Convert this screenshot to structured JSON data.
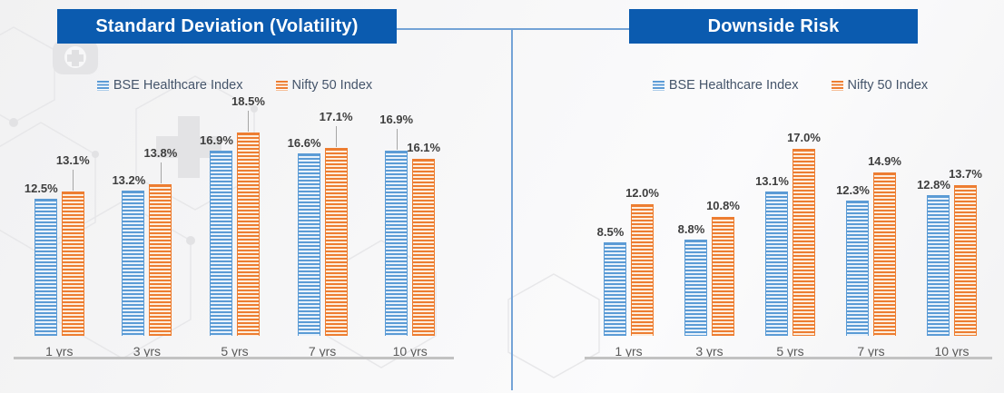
{
  "page": {
    "background_color": "#f4f4f5",
    "divider_color": "#74A3D6",
    "banner_color": "#0B5BAF",
    "baseline_color": "#C2C2C2",
    "leader_line_color": "#A6A6A6",
    "decor_icons": [
      "hexagon-pattern",
      "medical-cross",
      "health-app-badge"
    ]
  },
  "chart_data": [
    {
      "type": "bar",
      "title": "Standard Deviation (Volatility)",
      "categories": [
        "1 yrs",
        "3 yrs",
        "5 yrs",
        "7 yrs",
        "10 yrs"
      ],
      "series": [
        {
          "name": "BSE Healthcare Index",
          "color": "#5B9BD5",
          "stripe_light": "#e9f2fb",
          "values": [
            12.5,
            13.2,
            16.9,
            16.6,
            16.9
          ]
        },
        {
          "name": "Nifty 50 Index",
          "color": "#ED7D31",
          "stripe_light": "#fdeede",
          "values": [
            13.1,
            13.8,
            18.5,
            17.1,
            16.1
          ]
        }
      ],
      "leader_lines": [
        [
          false,
          false,
          false,
          false,
          true
        ],
        [
          true,
          true,
          true,
          true,
          false
        ]
      ],
      "value_label_suffix": "%",
      "value_label_decimals": 1,
      "legend_position": "top",
      "grid": false,
      "y_axis_visible": false,
      "ylim": [
        0,
        20
      ]
    },
    {
      "type": "bar",
      "title": "Downside Risk",
      "categories": [
        "1 yrs",
        "3 yrs",
        "5 yrs",
        "7 yrs",
        "10 yrs"
      ],
      "series": [
        {
          "name": "BSE Healthcare Index",
          "color": "#5B9BD5",
          "stripe_light": "#e9f2fb",
          "values": [
            8.5,
            8.8,
            13.1,
            12.3,
            12.8
          ]
        },
        {
          "name": "Nifty 50 Index",
          "color": "#ED7D31",
          "stripe_light": "#fdeede",
          "values": [
            12.0,
            10.8,
            17.0,
            14.9,
            13.7
          ]
        }
      ],
      "leader_lines": [
        [
          false,
          false,
          false,
          false,
          false
        ],
        [
          false,
          false,
          false,
          false,
          false
        ]
      ],
      "value_label_suffix": "%",
      "value_label_decimals": 1,
      "legend_position": "top",
      "grid": false,
      "y_axis_visible": false,
      "ylim": [
        0,
        20
      ]
    }
  ]
}
